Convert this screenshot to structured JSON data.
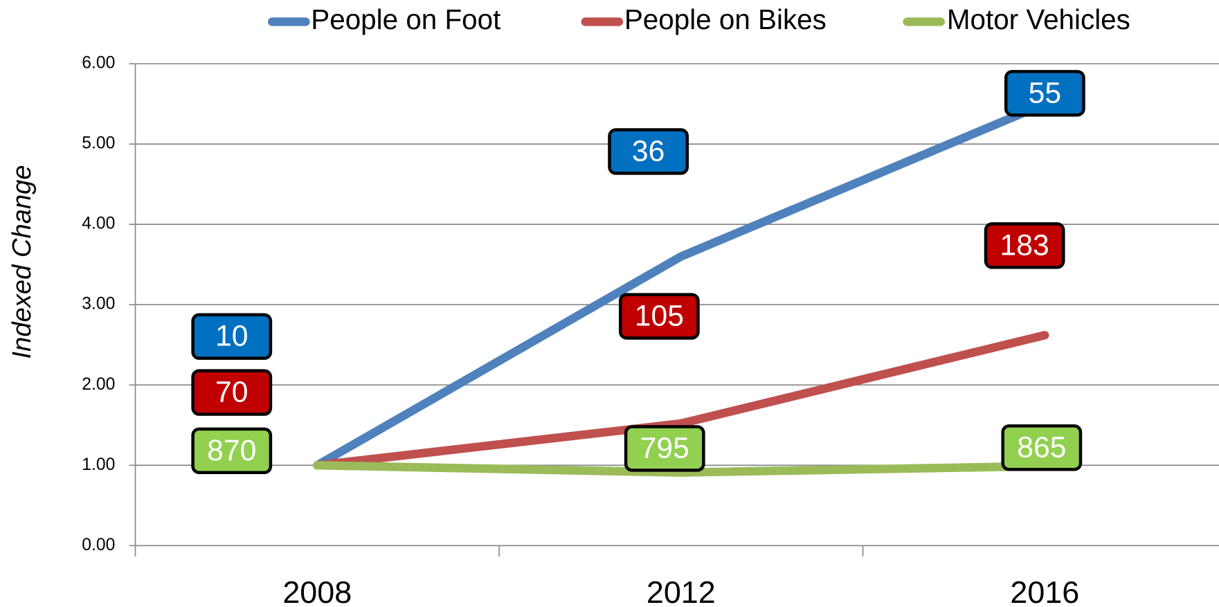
{
  "chart_data": {
    "type": "line",
    "y_label": "Indexed Change",
    "categories": [
      "2008",
      "2012",
      "2016"
    ],
    "series": [
      {
        "name": "People on Foot",
        "color": "#4f81bd",
        "label_color": "#0070c0",
        "values": [
          1.0,
          3.6,
          5.5
        ],
        "labels": [
          "10",
          "36",
          "55"
        ]
      },
      {
        "name": "People on Bikes",
        "color": "#c0504d",
        "label_color": "#c00000",
        "values": [
          1.0,
          1.52,
          2.62
        ],
        "labels": [
          "70",
          "105",
          "183"
        ]
      },
      {
        "name": "Motor Vehicles",
        "color": "#9bbb59",
        "label_color": "#92d050",
        "values": [
          1.0,
          0.91,
          0.99
        ],
        "labels": [
          "870",
          "795",
          "865"
        ]
      }
    ],
    "ylim": [
      0,
      6
    ],
    "yticks": [
      {
        "value": 0,
        "label": "0.00"
      },
      {
        "value": 1,
        "label": "1.00"
      },
      {
        "value": 2,
        "label": "2.00"
      },
      {
        "value": 3,
        "label": "3.00"
      },
      {
        "value": 4,
        "label": "4.00"
      },
      {
        "value": 5,
        "label": "5.00"
      },
      {
        "value": 6,
        "label": "6.00"
      }
    ],
    "grid": true,
    "legend": "top"
  }
}
